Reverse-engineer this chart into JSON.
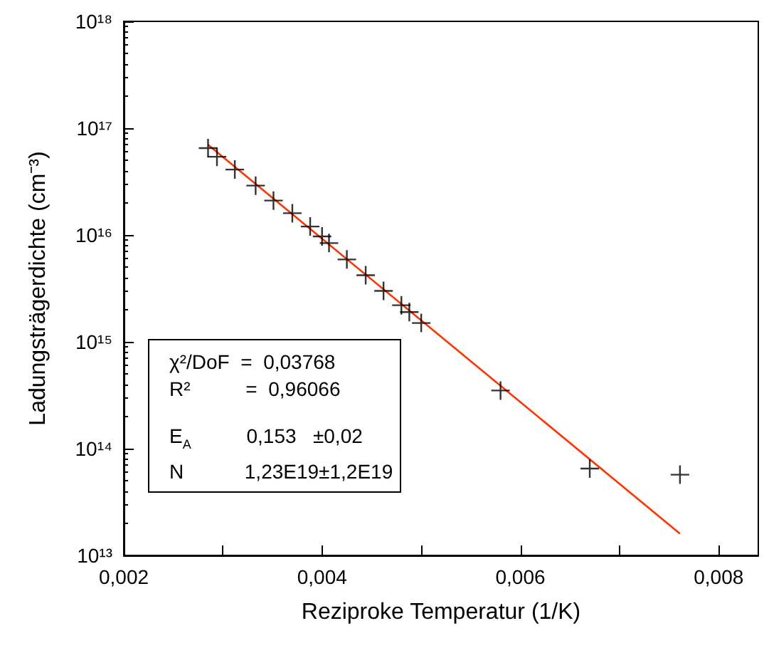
{
  "chart_data": {
    "type": "scatter",
    "xlabel": "Reziproke Temperatur (1/K)",
    "ylabel": "Ladungsträgerdichte (cm⁻³)",
    "log": "y",
    "marker": "cross",
    "xlim": [
      0.002,
      0.0084
    ],
    "xticks": [
      {
        "value": 0.002,
        "label": "0,002"
      },
      {
        "value": 0.003,
        "label": null
      },
      {
        "value": 0.004,
        "label": "0,004"
      },
      {
        "value": 0.005,
        "label": null
      },
      {
        "value": 0.006,
        "label": "0,006"
      },
      {
        "value": 0.007,
        "label": null
      },
      {
        "value": 0.008,
        "label": "0,008"
      }
    ],
    "ylim": [
      10000000000000.0,
      1e+18
    ],
    "yticks": [
      {
        "value": 10000000000000.0,
        "label": "10¹³"
      },
      {
        "value": 100000000000000.0,
        "label": "10¹⁴"
      },
      {
        "value": 1000000000000000.0,
        "label": "10¹⁵"
      },
      {
        "value": 1e+16,
        "label": "10¹⁶"
      },
      {
        "value": 1e+17,
        "label": "10¹⁷"
      },
      {
        "value": 1e+18,
        "label": "10¹⁸"
      }
    ],
    "series": [
      {
        "color": "#000000",
        "x": [
          0.00285,
          0.00294,
          0.00312,
          0.00333,
          0.00351,
          0.0037,
          0.00388,
          0.004,
          0.00407,
          0.00425,
          0.00444,
          0.00462,
          0.0048,
          0.00488,
          0.005,
          0.0058,
          0.0067,
          0.00761
        ],
        "values": [
          6.5e+16,
          5.4e+16,
          4.1e+16,
          2.9e+16,
          2.1e+16,
          1.6e+16,
          1.2e+16,
          9700000000000000.0,
          8400000000000000.0,
          5900000000000000.0,
          4200000000000000.0,
          3000000000000000.0,
          2200000000000000.0,
          1900000000000000.0,
          1500000000000000.0,
          350000000000000.0,
          65000000000000.0,
          57000000000000.0
        ]
      },
      {
        "type": "line",
        "color": "#ff3300",
        "marker": "none",
        "line_style": "solid",
        "x": [
          0.00285,
          0.00761
        ],
        "values": [
          7e+16,
          16000000000000.0
        ]
      }
    ],
    "annotations": [
      "χ²/DoF  =  0,03768",
      "R²          =  0,96066",
      "E$_{A}$          0,153   ±0,02",
      "N           1,23E19±1,2E19"
    ]
  }
}
